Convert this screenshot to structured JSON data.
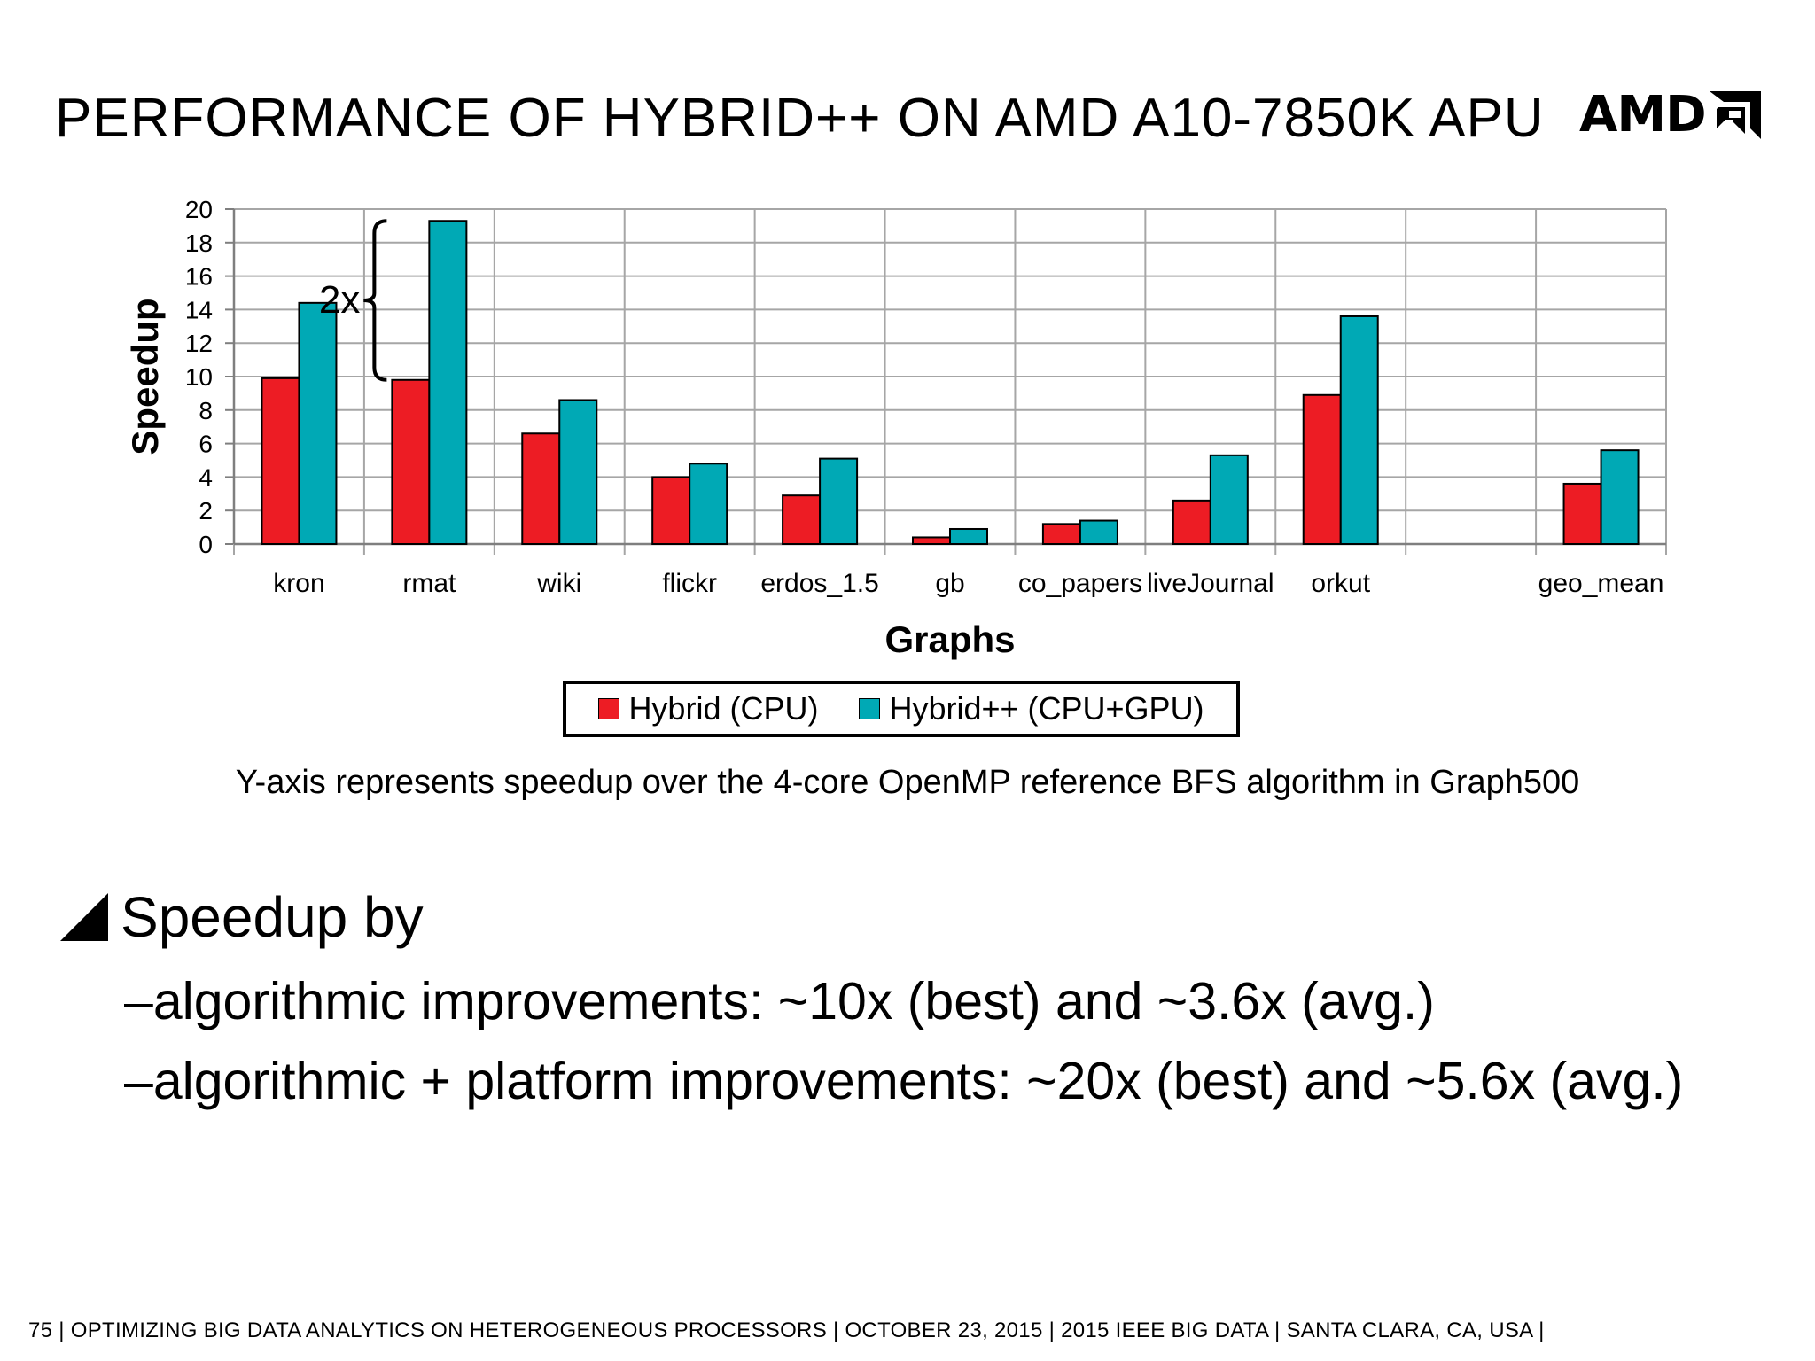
{
  "slide": {
    "title": "PERFORMANCE OF HYBRID++ ON AMD A10-7850K APU",
    "logo_text": "AMD",
    "caption": "Y-axis represents speedup over the 4-core OpenMP reference BFS algorithm in Graph500",
    "bullet": "Speedup by",
    "sub_bullets": [
      "–algorithmic improvements: ~10x (best) and ~3.6x (avg.)",
      "–algorithmic + platform improvements: ~20x (best) and ~5.6x (avg.)"
    ],
    "footer": "75  |  OPTIMIZING BIG DATA ANALYTICS ON HETEROGENEOUS PROCESSORS   |   OCTOBER 23, 2015   |   2015 IEEE BIG DATA   |   SANTA CLARA, CA, USA   |"
  },
  "chart_data": {
    "type": "bar",
    "title": "",
    "xlabel": "Graphs",
    "ylabel": "Speedup",
    "ylim": [
      0,
      20
    ],
    "ytick_step": 2,
    "grid": true,
    "legend": "bottom",
    "categories": [
      "kron",
      "rmat",
      "wiki",
      "flickr",
      "erdos_1.5",
      "gb",
      "co_papers",
      "liveJournal",
      "orkut",
      "",
      "geo_mean"
    ],
    "series": [
      {
        "name": "Hybrid (CPU)",
        "color": "#ed1c24",
        "values": [
          9.9,
          9.8,
          6.6,
          4.0,
          2.9,
          0.4,
          1.2,
          2.6,
          8.9,
          null,
          3.6
        ]
      },
      {
        "name": "Hybrid++ (CPU+GPU)",
        "color": "#00a9b5",
        "values": [
          14.4,
          19.3,
          8.6,
          4.8,
          5.1,
          0.9,
          1.4,
          5.3,
          13.6,
          null,
          5.6
        ]
      }
    ],
    "annotation": {
      "text": "2x",
      "category": "rmat",
      "from": 9.8,
      "to": 19.3
    }
  }
}
